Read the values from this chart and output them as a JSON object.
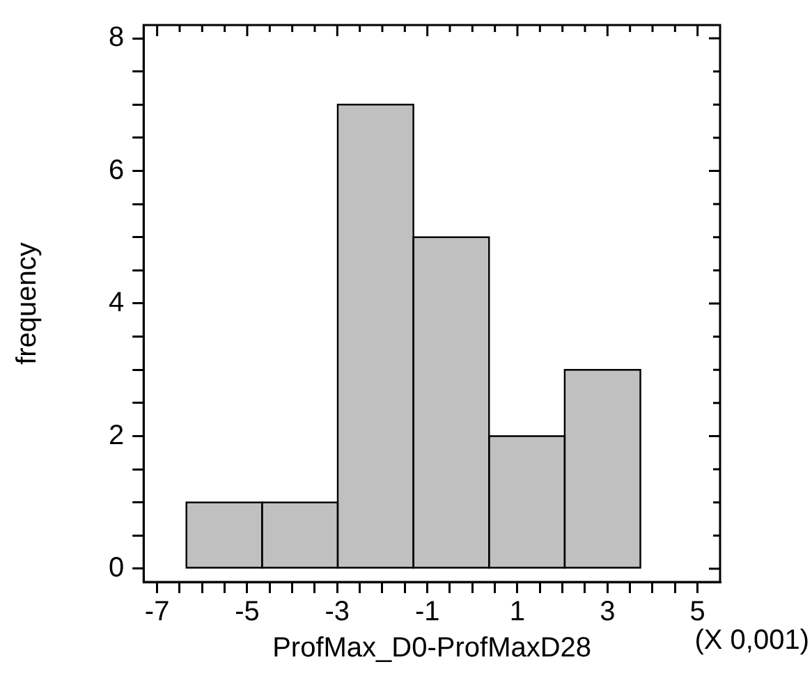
{
  "chart_data": {
    "type": "histogram",
    "xlabel": "ProfMax_D0-ProfMaxD28",
    "ylabel": "frequency",
    "annotations": [
      "(X 0,001)"
    ],
    "bins": [
      -6.35,
      -4.67,
      -2.99,
      -1.31,
      0.37,
      2.05,
      3.73
    ],
    "values": [
      1,
      1,
      7,
      5,
      2,
      3
    ],
    "color": "#c0c0c0",
    "xlim": [
      -7.3,
      5.5
    ],
    "xticks": [
      -7,
      {
        "value": -6.5,
        "label": null
      },
      {
        "value": -6,
        "label": null
      },
      {
        "value": -5.5,
        "label": null
      },
      -5,
      {
        "value": -4.5,
        "label": null
      },
      {
        "value": -4,
        "label": null
      },
      {
        "value": -3.5,
        "label": null
      },
      -3,
      {
        "value": -2.5,
        "label": null
      },
      {
        "value": -2,
        "label": null
      },
      {
        "value": -1.5,
        "label": null
      },
      -1,
      {
        "value": -0.5,
        "label": null
      },
      {
        "value": 0,
        "label": null
      },
      {
        "value": 0.5,
        "label": null
      },
      1,
      {
        "value": 1.5,
        "label": null
      },
      {
        "value": 2,
        "label": null
      },
      {
        "value": 2.5,
        "label": null
      },
      3,
      {
        "value": 3.5,
        "label": null
      },
      {
        "value": 4,
        "label": null
      },
      {
        "value": 4.5,
        "label": null
      },
      5
    ],
    "ylim": [
      -0.2,
      8.2
    ],
    "yticks": [
      0,
      {
        "value": 0.5,
        "label": null
      },
      {
        "value": 1,
        "label": null
      },
      {
        "value": 1.5,
        "label": null
      },
      2,
      {
        "value": 2.5,
        "label": null
      },
      {
        "value": 3,
        "label": null
      },
      {
        "value": 3.5,
        "label": null
      },
      4,
      {
        "value": 4.5,
        "label": null
      },
      {
        "value": 5,
        "label": null
      },
      {
        "value": 5.5,
        "label": null
      },
      6,
      {
        "value": 6.5,
        "label": null
      },
      {
        "value": 7,
        "label": null
      },
      {
        "value": 7.5,
        "label": null
      },
      8
    ],
    "grid": false,
    "legend": false
  }
}
